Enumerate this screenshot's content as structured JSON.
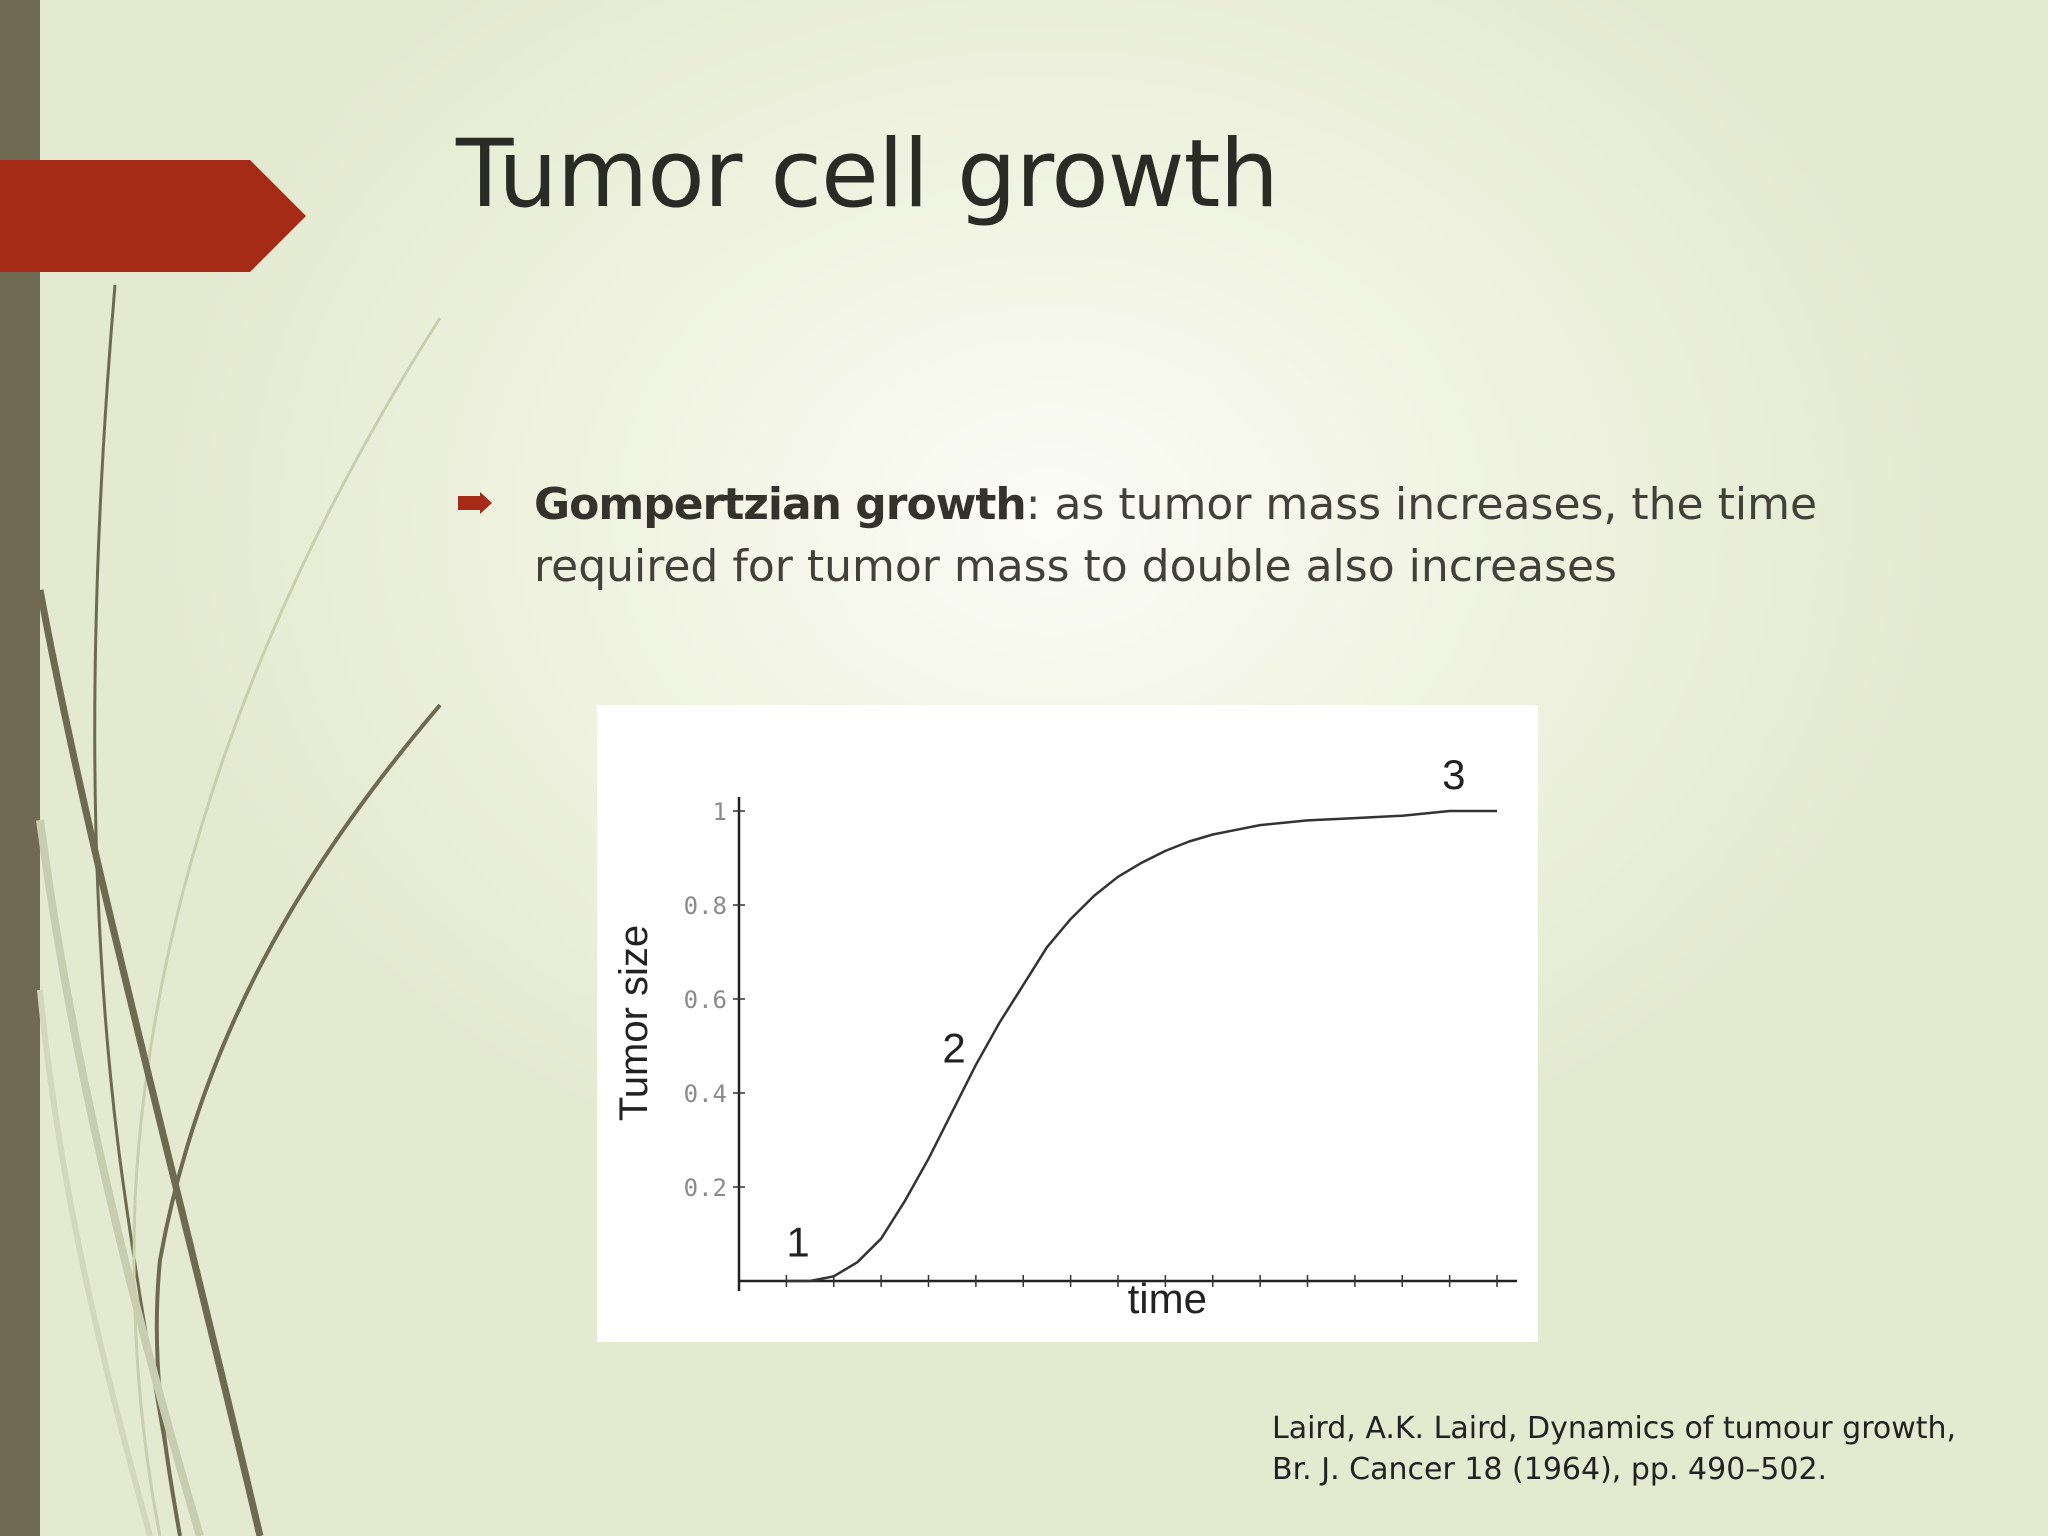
{
  "slide": {
    "title": "Tumor cell growth",
    "bullet": {
      "term": "Gompertzian growth",
      "text": ": as tumor mass increases, the time required for tumor mass to double also increases"
    },
    "citation": {
      "line1": "Laird,  A.K. Laird, Dynamics of tumour growth,",
      "line2": "Br. J. Cancer 18 (1964), pp. 490–502."
    },
    "colors": {
      "accent_red": "#a52b17",
      "side_bar": "#706a52"
    },
    "bullet_icon": "arrow-right-icon"
  },
  "chart_data": {
    "type": "line",
    "xlabel": "time",
    "ylabel": "Tumor size",
    "y_ticks": [
      "0.2",
      "0.4",
      "0.6",
      "0.8",
      "1"
    ],
    "y_tick_values": [
      0.2,
      0.4,
      0.6,
      0.8,
      1.0
    ],
    "ylim": [
      0,
      1
    ],
    "xlim": [
      0,
      16
    ],
    "x_tick_count": 16,
    "series": [
      {
        "x": [
          1.0,
          1.5,
          2.0,
          2.5,
          3.0,
          3.5,
          4.0,
          4.5,
          5.0,
          5.5,
          6.0,
          6.5,
          7.0,
          7.5,
          8.0,
          8.5,
          9.0,
          9.5,
          10.0,
          10.5,
          11.0,
          12.0,
          13.0,
          14.0,
          15.0,
          16.0
        ],
        "y": [
          0.0,
          0.0,
          0.01,
          0.04,
          0.09,
          0.17,
          0.26,
          0.36,
          0.46,
          0.55,
          0.63,
          0.71,
          0.77,
          0.82,
          0.86,
          0.89,
          0.915,
          0.935,
          0.95,
          0.96,
          0.97,
          0.98,
          0.985,
          0.99,
          1.0,
          1.0
        ]
      }
    ],
    "annotations": [
      {
        "label": "1",
        "x": 1.5,
        "y": 0.01
      },
      {
        "label": "2",
        "x": 5.3,
        "y": 0.49
      },
      {
        "label": "3",
        "x": 15.3,
        "y": 1.0
      }
    ],
    "grid": false,
    "legend": "none"
  }
}
